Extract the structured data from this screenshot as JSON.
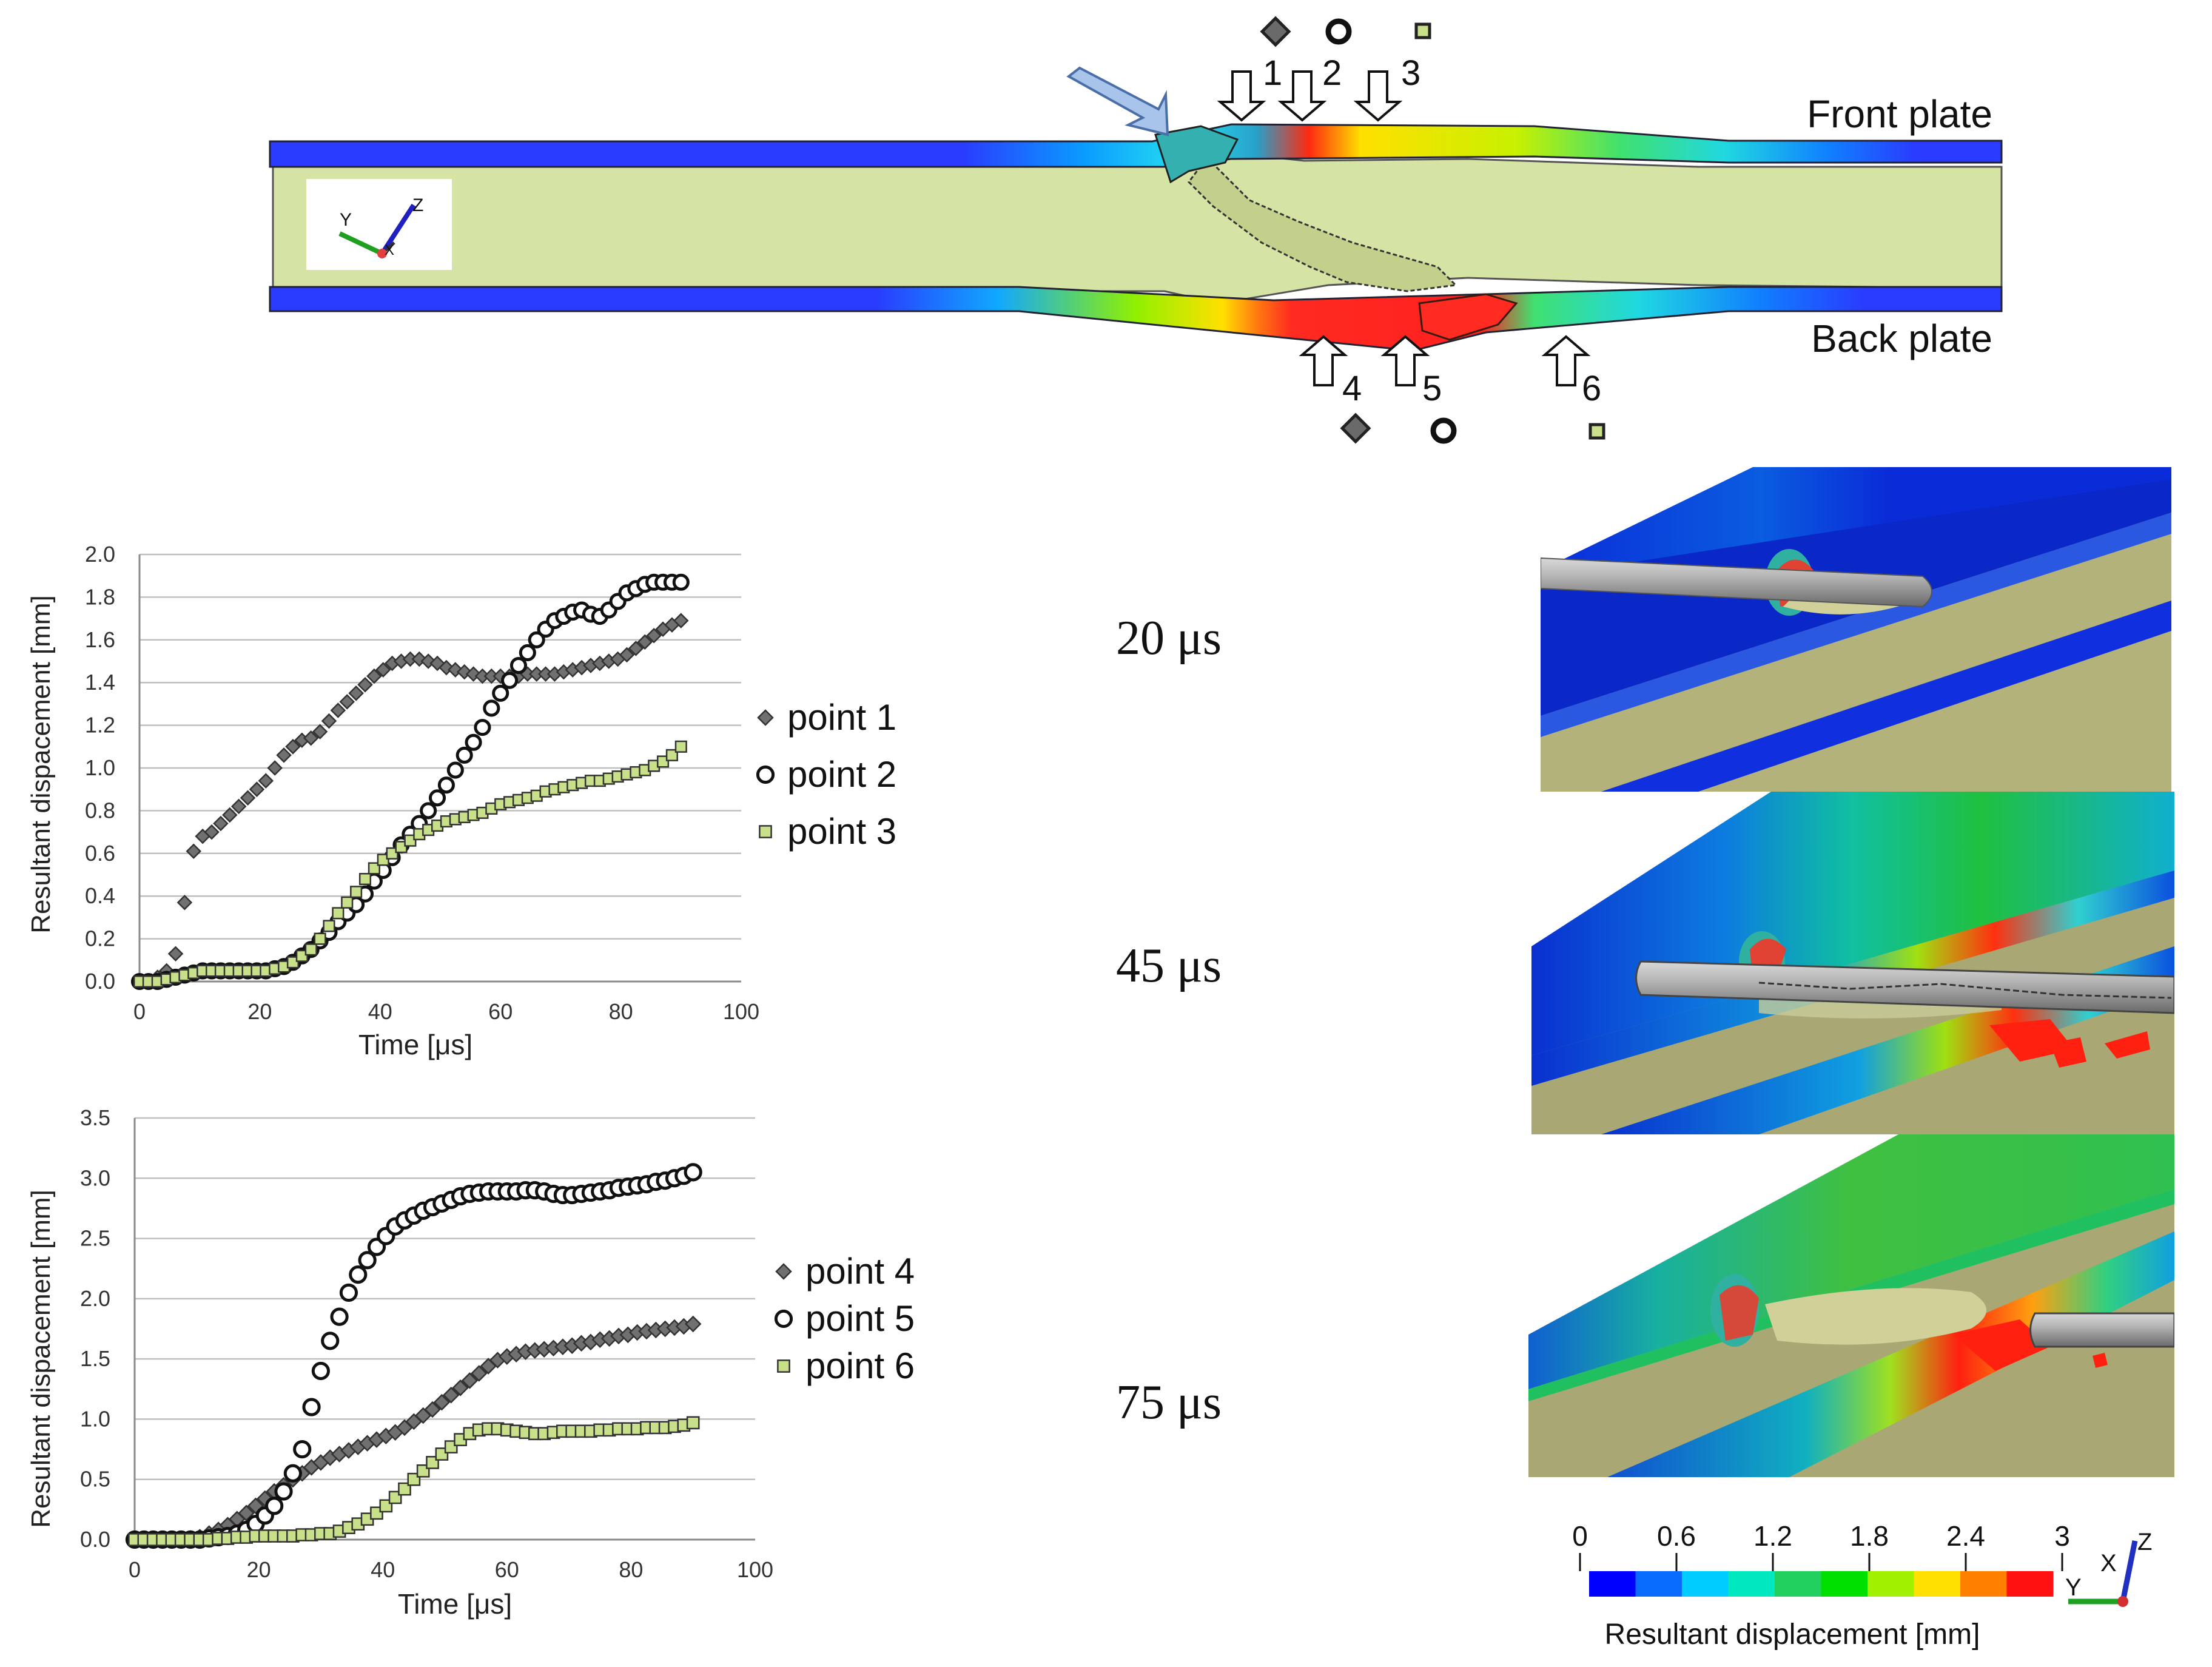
{
  "top_figure": {
    "front_label": "Front plate",
    "back_label": "Back plate",
    "point_numbers_top": [
      "1",
      "2",
      "3"
    ],
    "point_numbers_bottom": [
      "4",
      "5",
      "6"
    ],
    "triad_axes": [
      "Y",
      "Z",
      "X"
    ]
  },
  "snapshots": {
    "times": [
      "20 μs",
      "45 μs",
      "75 μs"
    ]
  },
  "colorbar": {
    "ticks": [
      "0",
      "0.6",
      "1.2",
      "1.8",
      "2.4",
      "3"
    ],
    "label": "Resultant displacement [mm]",
    "colors": [
      "#0000ff",
      "#0a6cff",
      "#00ccff",
      "#00e8c0",
      "#22d060",
      "#00e000",
      "#a0f000",
      "#ffe000",
      "#ff8000",
      "#ff1010"
    ],
    "triad_axes": [
      "Z",
      "X",
      "Y"
    ]
  },
  "chart_data": [
    {
      "type": "scatter",
      "title": "",
      "xlabel": "Time [μs]",
      "ylabel": "Resultant dispacement [mm]",
      "xlim": [
        0,
        100
      ],
      "ylim": [
        0,
        2
      ],
      "xticks": [
        "0",
        "20",
        "40",
        "60",
        "80",
        "100"
      ],
      "yticks": [
        "0.0",
        "0.2",
        "0.4",
        "0.6",
        "0.8",
        "1.0",
        "1.2",
        "1.4",
        "1.6",
        "1.8",
        "2.0"
      ],
      "grid": "horizontal",
      "legend": "right",
      "series": [
        {
          "name": "point 1",
          "marker": "diamond",
          "color": "#707070",
          "x": [
            0,
            1.5,
            3,
            4.5,
            6,
            7.5,
            9,
            10.5,
            12,
            13.5,
            15,
            16.5,
            18,
            19.5,
            21,
            22.5,
            24,
            25.5,
            27,
            28.5,
            30,
            31.5,
            33,
            34.5,
            36,
            37.5,
            39,
            40.5,
            42,
            43.5,
            45,
            46.5,
            48,
            49.5,
            51,
            52.5,
            54,
            55.5,
            57,
            58.5,
            60,
            61.5,
            63,
            64.5,
            66,
            67.5,
            69,
            70.5,
            72,
            73.5,
            75,
            76.5,
            78,
            79.5,
            81,
            82.5,
            84,
            85.5,
            87,
            88.5,
            90
          ],
          "y": [
            0,
            0,
            0.02,
            0.05,
            0.13,
            0.37,
            0.61,
            0.68,
            0.7,
            0.74,
            0.78,
            0.82,
            0.86,
            0.9,
            0.94,
            1.0,
            1.06,
            1.1,
            1.13,
            1.14,
            1.17,
            1.22,
            1.27,
            1.31,
            1.35,
            1.39,
            1.43,
            1.46,
            1.49,
            1.5,
            1.51,
            1.51,
            1.5,
            1.49,
            1.47,
            1.46,
            1.45,
            1.44,
            1.43,
            1.43,
            1.43,
            1.43,
            1.43,
            1.44,
            1.44,
            1.44,
            1.44,
            1.45,
            1.46,
            1.47,
            1.48,
            1.49,
            1.5,
            1.51,
            1.53,
            1.56,
            1.59,
            1.62,
            1.65,
            1.67,
            1.69
          ]
        },
        {
          "name": "point 2",
          "marker": "circle",
          "color": "#111111",
          "x": [
            0,
            1.5,
            3,
            4.5,
            6,
            7.5,
            9,
            10.5,
            12,
            13.5,
            15,
            16.5,
            18,
            19.5,
            21,
            22.5,
            24,
            25.5,
            27,
            28.5,
            30,
            31.5,
            33,
            34.5,
            36,
            37.5,
            39,
            40.5,
            42,
            43.5,
            45,
            46.5,
            48,
            49.5,
            51,
            52.5,
            54,
            55.5,
            57,
            58.5,
            60,
            61.5,
            63,
            64.5,
            66,
            67.5,
            69,
            70.5,
            72,
            73.5,
            75,
            76.5,
            78,
            79.5,
            81,
            82.5,
            84,
            85.5,
            87,
            88.5,
            90
          ],
          "y": [
            0,
            0,
            0,
            0.01,
            0.02,
            0.03,
            0.04,
            0.05,
            0.05,
            0.05,
            0.05,
            0.05,
            0.05,
            0.05,
            0.05,
            0.06,
            0.07,
            0.09,
            0.12,
            0.15,
            0.19,
            0.23,
            0.28,
            0.32,
            0.36,
            0.41,
            0.47,
            0.52,
            0.58,
            0.64,
            0.69,
            0.74,
            0.8,
            0.86,
            0.92,
            0.99,
            1.06,
            1.12,
            1.19,
            1.28,
            1.35,
            1.41,
            1.48,
            1.54,
            1.6,
            1.65,
            1.69,
            1.71,
            1.73,
            1.74,
            1.72,
            1.71,
            1.74,
            1.78,
            1.82,
            1.84,
            1.86,
            1.87,
            1.87,
            1.87,
            1.87
          ]
        },
        {
          "name": "point 3",
          "marker": "square",
          "color": "#c8e08a",
          "x": [
            0,
            1.5,
            3,
            4.5,
            6,
            7.5,
            9,
            10.5,
            12,
            13.5,
            15,
            16.5,
            18,
            19.5,
            21,
            22.5,
            24,
            25.5,
            27,
            28.5,
            30,
            31.5,
            33,
            34.5,
            36,
            37.5,
            39,
            40.5,
            42,
            43.5,
            45,
            46.5,
            48,
            49.5,
            51,
            52.5,
            54,
            55.5,
            57,
            58.5,
            60,
            61.5,
            63,
            64.5,
            66,
            67.5,
            69,
            70.5,
            72,
            73.5,
            75,
            76.5,
            78,
            79.5,
            81,
            82.5,
            84,
            85.5,
            87,
            88.5,
            90
          ],
          "y": [
            0,
            0,
            0,
            0.01,
            0.02,
            0.03,
            0.04,
            0.05,
            0.05,
            0.05,
            0.05,
            0.05,
            0.05,
            0.05,
            0.05,
            0.06,
            0.07,
            0.09,
            0.12,
            0.15,
            0.2,
            0.26,
            0.32,
            0.37,
            0.42,
            0.48,
            0.53,
            0.57,
            0.6,
            0.63,
            0.66,
            0.69,
            0.71,
            0.73,
            0.75,
            0.76,
            0.77,
            0.78,
            0.79,
            0.81,
            0.83,
            0.84,
            0.85,
            0.86,
            0.87,
            0.89,
            0.9,
            0.91,
            0.92,
            0.93,
            0.94,
            0.94,
            0.95,
            0.96,
            0.97,
            0.98,
            0.99,
            1.01,
            1.03,
            1.06,
            1.1
          ]
        }
      ]
    },
    {
      "type": "scatter",
      "title": "",
      "xlabel": "Time [μs]",
      "ylabel": "Resultant dispacement [mm]",
      "xlim": [
        0,
        100
      ],
      "ylim": [
        0,
        3.5
      ],
      "xticks": [
        "0",
        "20",
        "40",
        "60",
        "80",
        "100"
      ],
      "yticks": [
        "0.0",
        "0.5",
        "1.0",
        "1.5",
        "2.0",
        "2.5",
        "3.0",
        "3.5"
      ],
      "grid": "horizontal",
      "legend": "right",
      "series": [
        {
          "name": "point 4",
          "marker": "diamond",
          "color": "#707070",
          "x": [
            0,
            1.5,
            3,
            4.5,
            6,
            7.5,
            9,
            10.5,
            12,
            13.5,
            15,
            16.5,
            18,
            19.5,
            21,
            22.5,
            24,
            25.5,
            27,
            28.5,
            30,
            31.5,
            33,
            34.5,
            36,
            37.5,
            39,
            40.5,
            42,
            43.5,
            45,
            46.5,
            48,
            49.5,
            51,
            52.5,
            54,
            55.5,
            57,
            58.5,
            60,
            61.5,
            63,
            64.5,
            66,
            67.5,
            69,
            70.5,
            72,
            73.5,
            75,
            76.5,
            78,
            79.5,
            81,
            82.5,
            84,
            85.5,
            87,
            88.5,
            90
          ],
          "y": [
            0,
            0,
            0,
            0,
            0,
            0,
            0.01,
            0.02,
            0.05,
            0.08,
            0.12,
            0.17,
            0.22,
            0.28,
            0.34,
            0.4,
            0.45,
            0.5,
            0.55,
            0.6,
            0.64,
            0.68,
            0.71,
            0.74,
            0.77,
            0.8,
            0.83,
            0.86,
            0.89,
            0.93,
            0.98,
            1.03,
            1.08,
            1.14,
            1.2,
            1.26,
            1.32,
            1.38,
            1.44,
            1.49,
            1.52,
            1.54,
            1.56,
            1.57,
            1.58,
            1.59,
            1.6,
            1.61,
            1.63,
            1.64,
            1.66,
            1.67,
            1.69,
            1.7,
            1.72,
            1.73,
            1.74,
            1.75,
            1.76,
            1.77,
            1.79
          ]
        },
        {
          "name": "point 5",
          "marker": "circle",
          "color": "#111111",
          "x": [
            0,
            1.5,
            3,
            4.5,
            6,
            7.5,
            9,
            10.5,
            12,
            13.5,
            15,
            16.5,
            18,
            19.5,
            21,
            22.5,
            24,
            25.5,
            27,
            28.5,
            30,
            31.5,
            33,
            34.5,
            36,
            37.5,
            39,
            40.5,
            42,
            43.5,
            45,
            46.5,
            48,
            49.5,
            51,
            52.5,
            54,
            55.5,
            57,
            58.5,
            60,
            61.5,
            63,
            64.5,
            66,
            67.5,
            69,
            70.5,
            72,
            73.5,
            75,
            76.5,
            78,
            79.5,
            81,
            82.5,
            84,
            85.5,
            87,
            88.5,
            90
          ],
          "y": [
            0,
            0,
            0,
            0,
            0,
            0,
            0,
            0,
            0.01,
            0.02,
            0.03,
            0.05,
            0.08,
            0.13,
            0.2,
            0.28,
            0.4,
            0.55,
            0.75,
            1.1,
            1.4,
            1.65,
            1.85,
            2.05,
            2.2,
            2.32,
            2.43,
            2.52,
            2.6,
            2.65,
            2.69,
            2.73,
            2.76,
            2.79,
            2.82,
            2.85,
            2.87,
            2.88,
            2.89,
            2.89,
            2.89,
            2.89,
            2.9,
            2.9,
            2.89,
            2.87,
            2.86,
            2.86,
            2.87,
            2.88,
            2.89,
            2.9,
            2.92,
            2.93,
            2.94,
            2.95,
            2.97,
            2.98,
            3.0,
            3.02,
            3.05
          ]
        },
        {
          "name": "point 6",
          "marker": "square",
          "color": "#c8e08a",
          "x": [
            0,
            1.5,
            3,
            4.5,
            6,
            7.5,
            9,
            10.5,
            12,
            13.5,
            15,
            16.5,
            18,
            19.5,
            21,
            22.5,
            24,
            25.5,
            27,
            28.5,
            30,
            31.5,
            33,
            34.5,
            36,
            37.5,
            39,
            40.5,
            42,
            43.5,
            45,
            46.5,
            48,
            49.5,
            51,
            52.5,
            54,
            55.5,
            57,
            58.5,
            60,
            61.5,
            63,
            64.5,
            66,
            67.5,
            69,
            70.5,
            72,
            73.5,
            75,
            76.5,
            78,
            79.5,
            81,
            82.5,
            84,
            85.5,
            87,
            88.5,
            90
          ],
          "y": [
            0,
            0,
            0,
            0,
            0,
            0,
            0,
            0,
            0,
            0.01,
            0.01,
            0.02,
            0.02,
            0.03,
            0.03,
            0.03,
            0.03,
            0.03,
            0.04,
            0.04,
            0.05,
            0.05,
            0.07,
            0.1,
            0.13,
            0.17,
            0.22,
            0.28,
            0.35,
            0.42,
            0.5,
            0.57,
            0.64,
            0.71,
            0.77,
            0.83,
            0.88,
            0.91,
            0.92,
            0.92,
            0.91,
            0.9,
            0.89,
            0.88,
            0.88,
            0.89,
            0.9,
            0.9,
            0.9,
            0.9,
            0.91,
            0.91,
            0.92,
            0.92,
            0.92,
            0.93,
            0.93,
            0.93,
            0.94,
            0.95,
            0.97
          ]
        }
      ]
    }
  ]
}
